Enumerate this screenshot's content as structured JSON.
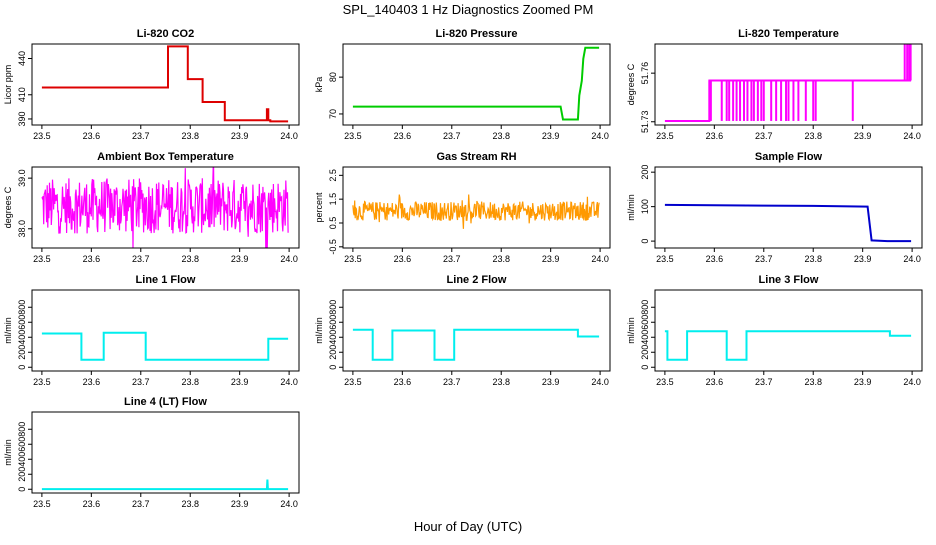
{
  "page": {
    "title": "SPL_140403  1 Hz Diagnostics Zoomed PM",
    "xlabel": "Hour of Day (UTC)"
  },
  "chart_data": [
    {
      "type": "line",
      "title": "Li-820 CO2",
      "ylabel": "Licor ppm",
      "color": "#dd0000",
      "xlim": [
        23.48,
        24.02
      ],
      "ylim": [
        385,
        452
      ],
      "xticks": [
        "23.5",
        "23.6",
        "23.7",
        "23.8",
        "23.9",
        "24.0"
      ],
      "yticks": [
        {
          "v": 390,
          "label": "390"
        },
        {
          "v": 410,
          "label": "410"
        },
        {
          "v": 440,
          "label": "440"
        }
      ],
      "style": "step",
      "x": [
        23.5,
        23.755,
        23.755,
        23.765,
        23.765,
        23.795,
        23.795,
        23.825,
        23.825,
        23.84,
        23.84,
        23.87,
        23.87,
        23.955,
        23.955,
        23.958,
        23.958,
        23.962,
        23.962,
        23.998
      ],
      "values": [
        416,
        416,
        450,
        450,
        450,
        450,
        423,
        423,
        404,
        404,
        404,
        404,
        389,
        389,
        398,
        398,
        389,
        389,
        388,
        388
      ]
    },
    {
      "type": "line",
      "title": "Li-820 Pressure",
      "ylabel": "kPa",
      "color": "#00cc00",
      "xlim": [
        23.48,
        24.02
      ],
      "ylim": [
        67,
        89
      ],
      "xticks": [
        "23.5",
        "23.6",
        "23.7",
        "23.8",
        "23.9",
        "24.0"
      ],
      "yticks": [
        {
          "v": 70,
          "label": "70"
        },
        {
          "v": 80,
          "label": "80"
        }
      ],
      "style": "line",
      "x": [
        23.5,
        23.6,
        23.7,
        23.8,
        23.92,
        23.925,
        23.955,
        23.958,
        23.963,
        23.966,
        23.97,
        23.998
      ],
      "values": [
        72,
        72,
        72,
        72,
        72,
        68.5,
        68.5,
        75,
        79,
        85,
        88,
        88
      ]
    },
    {
      "type": "line",
      "title": "Li-820 Temperature",
      "ylabel": "degrees C",
      "color": "#ff00ff",
      "xlim": [
        23.48,
        24.02
      ],
      "ylim": [
        51.728,
        51.778
      ],
      "xticks": [
        "23.5",
        "23.6",
        "23.7",
        "23.8",
        "23.9",
        "24.0"
      ],
      "yticks": [
        {
          "v": 51.73,
          "label": "51.73"
        },
        {
          "v": 51.76,
          "label": "51.76"
        }
      ],
      "style": "step",
      "x": [
        23.5,
        23.59,
        23.59,
        23.98,
        23.98,
        23.998
      ],
      "values": [
        51.7305,
        51.7305,
        51.7555,
        51.7555,
        51.7555,
        51.7555
      ],
      "spikes_low": [
        23.59,
        23.593,
        23.615,
        23.625,
        23.63,
        23.638,
        23.645,
        23.652,
        23.66,
        23.667,
        23.675,
        23.68,
        23.688,
        23.695,
        23.7,
        23.715,
        23.725,
        23.735,
        23.745,
        23.75,
        23.76,
        23.77,
        23.785,
        23.8,
        23.805,
        23.88
      ],
      "spikes_high": [
        23.985,
        23.99,
        23.994,
        23.997
      ]
    },
    {
      "type": "line",
      "title": "Ambient Box Temperature",
      "ylabel": "degrees C",
      "color": "#ff00ff",
      "xlim": [
        23.48,
        24.02
      ],
      "ylim": [
        37.62,
        39.22
      ],
      "xticks": [
        "23.5",
        "23.6",
        "23.7",
        "23.8",
        "23.9",
        "24.0"
      ],
      "yticks": [
        {
          "v": 38.0,
          "label": "38.0"
        },
        {
          "v": 39.0,
          "label": "39.0"
        }
      ],
      "style": "noise",
      "x_start": 23.5,
      "x_end": 23.998,
      "center": 38.45,
      "spread": 0.55,
      "points": 420,
      "x": [
        23.5,
        23.998
      ],
      "values": [
        38.45,
        38.45
      ]
    },
    {
      "type": "line",
      "title": "Gas Stream RH",
      "ylabel": "percent",
      "color": "#ff9900",
      "xlim": [
        23.48,
        24.02
      ],
      "ylim": [
        -0.55,
        2.85
      ],
      "xticks": [
        "23.5",
        "23.6",
        "23.7",
        "23.8",
        "23.9",
        "24.0"
      ],
      "yticks": [
        {
          "v": -0.5,
          "label": "-0.5"
        },
        {
          "v": 0.5,
          "label": "0.5"
        },
        {
          "v": 1.5,
          "label": "1.5"
        },
        {
          "v": 2.5,
          "label": "2.5"
        }
      ],
      "style": "noise",
      "x_start": 23.5,
      "x_end": 23.998,
      "center": 1.0,
      "spread": 0.4,
      "points": 420,
      "x": [
        23.5,
        23.998
      ],
      "values": [
        1.0,
        1.0
      ]
    },
    {
      "type": "line",
      "title": "Sample Flow",
      "ylabel": "ml/min",
      "color": "#0000cc",
      "xlim": [
        23.48,
        24.02
      ],
      "ylim": [
        -20,
        215
      ],
      "xticks": [
        "23.5",
        "23.6",
        "23.7",
        "23.8",
        "23.9",
        "24.0"
      ],
      "yticks": [
        {
          "v": 0,
          "label": "0"
        },
        {
          "v": 100,
          "label": "100"
        },
        {
          "v": 200,
          "label": "200"
        }
      ],
      "style": "line",
      "x": [
        23.5,
        23.6,
        23.7,
        23.8,
        23.91,
        23.918,
        23.95,
        23.998
      ],
      "values": [
        105,
        104,
        103,
        102,
        100,
        2,
        0,
        0
      ]
    },
    {
      "type": "line",
      "title": "Line 1 Flow",
      "ylabel": "ml/min",
      "color": "#00eeee",
      "xlim": [
        23.48,
        24.02
      ],
      "ylim": [
        -50,
        1030
      ],
      "xticks": [
        "23.5",
        "23.6",
        "23.7",
        "23.8",
        "23.9",
        "24.0"
      ],
      "yticks": [
        {
          "v": 0,
          "label": "0"
        },
        {
          "v": 200,
          "label": "200"
        },
        {
          "v": 400,
          "label": "400"
        },
        {
          "v": 600,
          "label": "600"
        },
        {
          "v": 800,
          "label": "800"
        }
      ],
      "style": "step",
      "x": [
        23.5,
        23.58,
        23.58,
        23.625,
        23.625,
        23.71,
        23.71,
        23.958,
        23.958,
        23.998
      ],
      "values": [
        450,
        450,
        100,
        100,
        460,
        460,
        100,
        100,
        380,
        380
      ]
    },
    {
      "type": "line",
      "title": "Line 2 Flow",
      "ylabel": "ml/min",
      "color": "#00eeee",
      "xlim": [
        23.48,
        24.02
      ],
      "ylim": [
        -50,
        1030
      ],
      "xticks": [
        "23.5",
        "23.6",
        "23.7",
        "23.8",
        "23.9",
        "24.0"
      ],
      "yticks": [
        {
          "v": 0,
          "label": "0"
        },
        {
          "v": 200,
          "label": "200"
        },
        {
          "v": 400,
          "label": "400"
        },
        {
          "v": 600,
          "label": "600"
        },
        {
          "v": 800,
          "label": "800"
        }
      ],
      "style": "step",
      "x": [
        23.5,
        23.54,
        23.54,
        23.58,
        23.58,
        23.665,
        23.665,
        23.705,
        23.705,
        23.955,
        23.955,
        23.998
      ],
      "values": [
        500,
        500,
        100,
        100,
        490,
        490,
        100,
        100,
        500,
        500,
        410,
        410
      ]
    },
    {
      "type": "line",
      "title": "Line 3 Flow",
      "ylabel": "ml/min",
      "color": "#00eeee",
      "xlim": [
        23.48,
        24.02
      ],
      "ylim": [
        -50,
        1030
      ],
      "xticks": [
        "23.5",
        "23.6",
        "23.7",
        "23.8",
        "23.9",
        "24.0"
      ],
      "yticks": [
        {
          "v": 0,
          "label": "0"
        },
        {
          "v": 200,
          "label": "200"
        },
        {
          "v": 400,
          "label": "400"
        },
        {
          "v": 600,
          "label": "600"
        },
        {
          "v": 800,
          "label": "800"
        }
      ],
      "style": "step",
      "x": [
        23.5,
        23.505,
        23.505,
        23.545,
        23.545,
        23.625,
        23.625,
        23.665,
        23.665,
        23.955,
        23.955,
        23.998
      ],
      "values": [
        480,
        480,
        100,
        100,
        480,
        480,
        100,
        100,
        480,
        480,
        420,
        420
      ]
    },
    {
      "type": "line",
      "title": "Line 4 (LT) Flow",
      "ylabel": "ml/min",
      "color": "#00eeee",
      "xlim": [
        23.48,
        24.02
      ],
      "ylim": [
        -50,
        1030
      ],
      "xticks": [
        "23.5",
        "23.6",
        "23.7",
        "23.8",
        "23.9",
        "24.0"
      ],
      "yticks": [
        {
          "v": 0,
          "label": "0"
        },
        {
          "v": 200,
          "label": "200"
        },
        {
          "v": 400,
          "label": "400"
        },
        {
          "v": 600,
          "label": "600"
        },
        {
          "v": 800,
          "label": "800"
        }
      ],
      "style": "line",
      "x": [
        23.5,
        23.955,
        23.956,
        23.957,
        23.958,
        23.998
      ],
      "values": [
        2,
        2,
        130,
        2,
        2,
        2
      ]
    }
  ]
}
